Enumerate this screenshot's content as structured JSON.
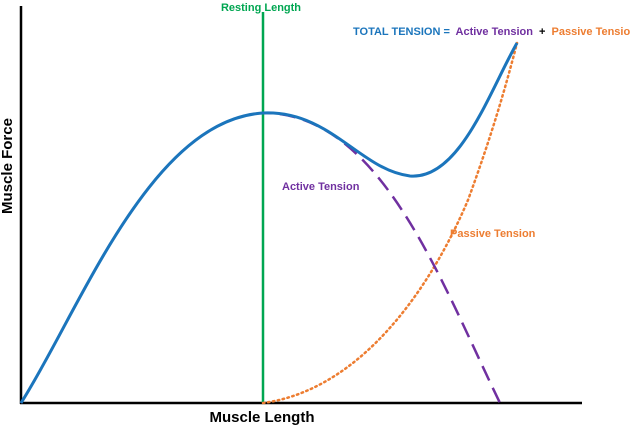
{
  "labels": {
    "resting": "Resting Length",
    "active": "Active Tension",
    "passive": "Passive Tension",
    "x_axis": "Muscle Length",
    "y_axis": "Muscle Force"
  },
  "legend": {
    "total": "TOTAL TENSION =",
    "active": "Active Tension",
    "plus": "+",
    "passive": "Passive Tension"
  },
  "colors": {
    "total": "#1b75bc",
    "active": "#7030a0",
    "passive": "#ed7d31",
    "resting": "#00a651",
    "axis": "#000000"
  }
}
